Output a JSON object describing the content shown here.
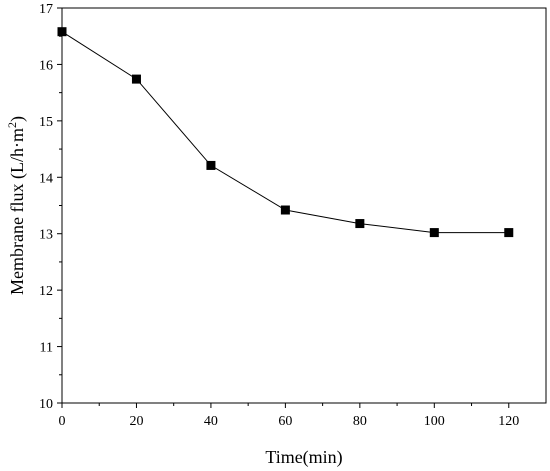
{
  "chart_data": {
    "type": "line",
    "xlabel": "Time(min)",
    "ylabel": {
      "text": "Membrane flux (L/h·m",
      "sup": "2",
      "close": ")"
    },
    "xlim": [
      0,
      130
    ],
    "ylim": [
      10,
      17
    ],
    "x_ticks": [
      0,
      20,
      40,
      60,
      80,
      100,
      120
    ],
    "y_ticks": [
      10,
      11,
      12,
      13,
      14,
      15,
      16,
      17
    ],
    "grid": false,
    "marker": "square",
    "line_color": "#000000",
    "series": [
      {
        "x": [
          0,
          20,
          40,
          60,
          80,
          100,
          120
        ],
        "values": [
          16.58,
          15.74,
          14.21,
          13.42,
          13.18,
          13.02,
          13.02
        ]
      }
    ]
  }
}
